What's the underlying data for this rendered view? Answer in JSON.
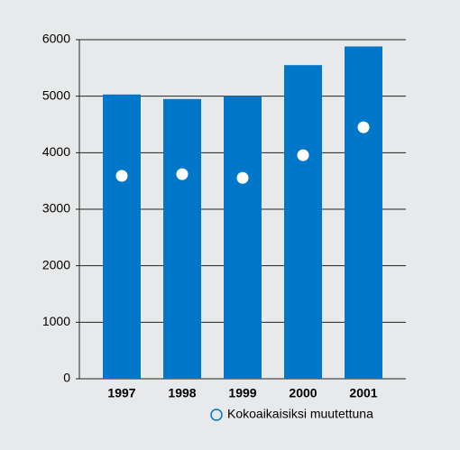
{
  "chart_data": {
    "type": "bar",
    "categories": [
      "1997",
      "1998",
      "1999",
      "2000",
      "2001"
    ],
    "values": [
      5030,
      4950,
      5000,
      5550,
      5880
    ],
    "color": "#0077c8",
    "markers": {
      "name": "Kokoaikaisiksi muutettuna",
      "color": "#ffffff",
      "values": [
        3590,
        3620,
        3555,
        3955,
        4450
      ]
    },
    "ylim": [
      0,
      6000
    ],
    "yticks": [
      0,
      1000,
      2000,
      3000,
      4000,
      5000,
      6000
    ],
    "grid": true
  }
}
